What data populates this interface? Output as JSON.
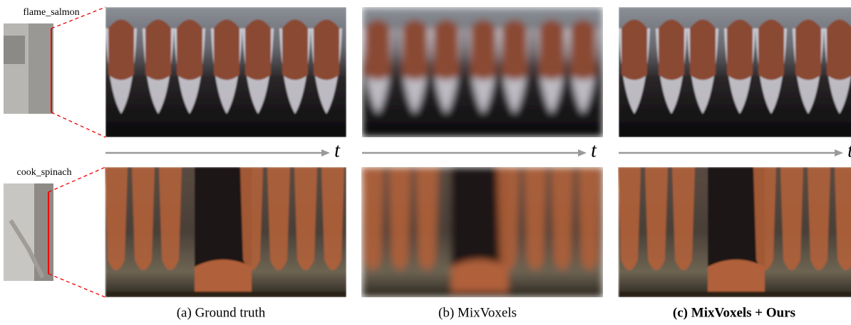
{
  "rows": [
    {
      "label": "flame_salmon"
    },
    {
      "label": "cook_spinach"
    }
  ],
  "time_axis": [
    "t",
    "t",
    "t"
  ],
  "columns": [
    {
      "caption": "(a) Ground truth"
    },
    {
      "caption": "(b) MixVoxels"
    },
    {
      "caption": "(c) MixVoxels + Ours"
    }
  ]
}
